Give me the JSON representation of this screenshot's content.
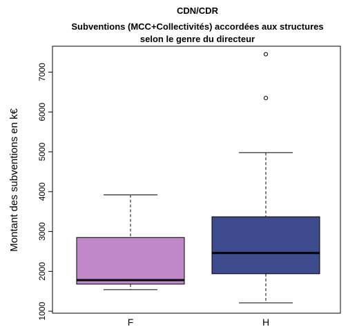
{
  "chart_data": {
    "type": "boxplot",
    "title": [
      "CDN/CDR",
      "Subventions (MCC+Collectivités) accordées aux structures",
      "selon le genre du directeur"
    ],
    "xlabel": "",
    "ylabel": "Montant des subventions en k€",
    "ylim": [
      950,
      7650
    ],
    "yticks": [
      1000,
      2000,
      3000,
      4000,
      5000,
      6000,
      7000
    ],
    "grid": false,
    "categories": [
      "F",
      "H"
    ],
    "boxes": [
      {
        "category": "F",
        "whisker_low": 1540,
        "q1": 1680,
        "median": 1780,
        "q3": 2850,
        "whisker_high": 3920,
        "outliers": [],
        "color": "#bf88c9"
      },
      {
        "category": "H",
        "whisker_low": 1210,
        "q1": 1940,
        "median": 2460,
        "q3": 3370,
        "whisker_high": 4980,
        "outliers": [
          6350,
          7450
        ],
        "color": "#3e4b8c"
      }
    ]
  }
}
